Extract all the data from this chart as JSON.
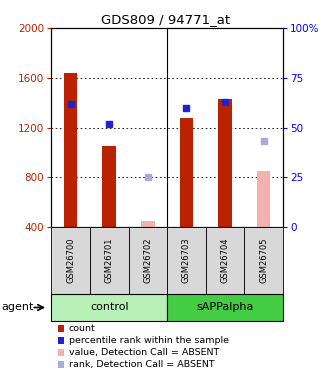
{
  "title": "GDS809 / 94771_at",
  "samples": [
    "GSM26700",
    "GSM26701",
    "GSM26702",
    "GSM26703",
    "GSM26704",
    "GSM26705"
  ],
  "absent": [
    false,
    false,
    true,
    false,
    false,
    true
  ],
  "count_values": [
    1640,
    1050,
    450,
    1280,
    1430,
    850
  ],
  "rank_values": [
    62,
    52,
    25,
    60,
    63,
    43
  ],
  "ylim_left": [
    400,
    2000
  ],
  "ylim_right": [
    0,
    100
  ],
  "yticks_left": [
    400,
    800,
    1200,
    1600,
    2000
  ],
  "yticks_right": [
    0,
    25,
    50,
    75,
    100
  ],
  "bar_color_present": "#bb2200",
  "bar_color_absent": "#f5b0b0",
  "rank_color_present": "#2222cc",
  "rank_color_absent": "#aaaadd",
  "group_bg_control": "#b8f0b8",
  "group_bg_sapp": "#44cc44",
  "sample_bg": "#d8d8d8",
  "legend_items": [
    {
      "label": "count",
      "color": "#bb2200"
    },
    {
      "label": "percentile rank within the sample",
      "color": "#2222cc"
    },
    {
      "label": "value, Detection Call = ABSENT",
      "color": "#f5b0b0"
    },
    {
      "label": "rank, Detection Call = ABSENT",
      "color": "#aaaadd"
    }
  ]
}
